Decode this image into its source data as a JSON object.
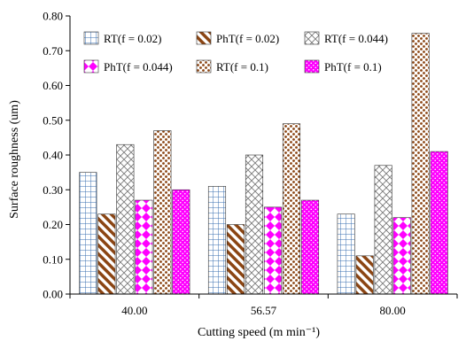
{
  "chart_data": {
    "type": "bar",
    "title": "",
    "xlabel": "Cutting speed (m min⁻¹)",
    "ylabel": "Surface roughness (um)",
    "ylim": [
      0,
      0.8
    ],
    "ytick_step": 0.1,
    "ytick_labels": [
      "0.00",
      "0.10",
      "0.20",
      "0.30",
      "0.40",
      "0.50",
      "0.60",
      "0.70",
      "0.80"
    ],
    "categories": [
      "40.00",
      "56.57",
      "80.00"
    ],
    "grid": false,
    "legend_position": "top",
    "series": [
      {
        "name": "RT(f = 0.02)",
        "values": [
          0.35,
          0.31,
          0.23
        ],
        "pattern": "grid",
        "color": "#3a6fb0"
      },
      {
        "name": "PhT(f = 0.02)",
        "values": [
          0.23,
          0.2,
          0.11
        ],
        "pattern": "diagonal",
        "color": "#8b4513"
      },
      {
        "name": "RT(f = 0.044)",
        "values": [
          0.43,
          0.4,
          0.37
        ],
        "pattern": "crosshatch",
        "color": "#808080"
      },
      {
        "name": "PhT(f = 0.044)",
        "values": [
          0.27,
          0.25,
          0.22
        ],
        "pattern": "diamonds",
        "color": "#ff00ff"
      },
      {
        "name": "RT(f = 0.1)",
        "values": [
          0.47,
          0.49,
          0.75
        ],
        "pattern": "dots-brown",
        "color": "#8b4513"
      },
      {
        "name": "PhT(f = 0.1)",
        "values": [
          0.3,
          0.27,
          0.41
        ],
        "pattern": "dots-pink",
        "color": "#ff00ff"
      }
    ]
  }
}
